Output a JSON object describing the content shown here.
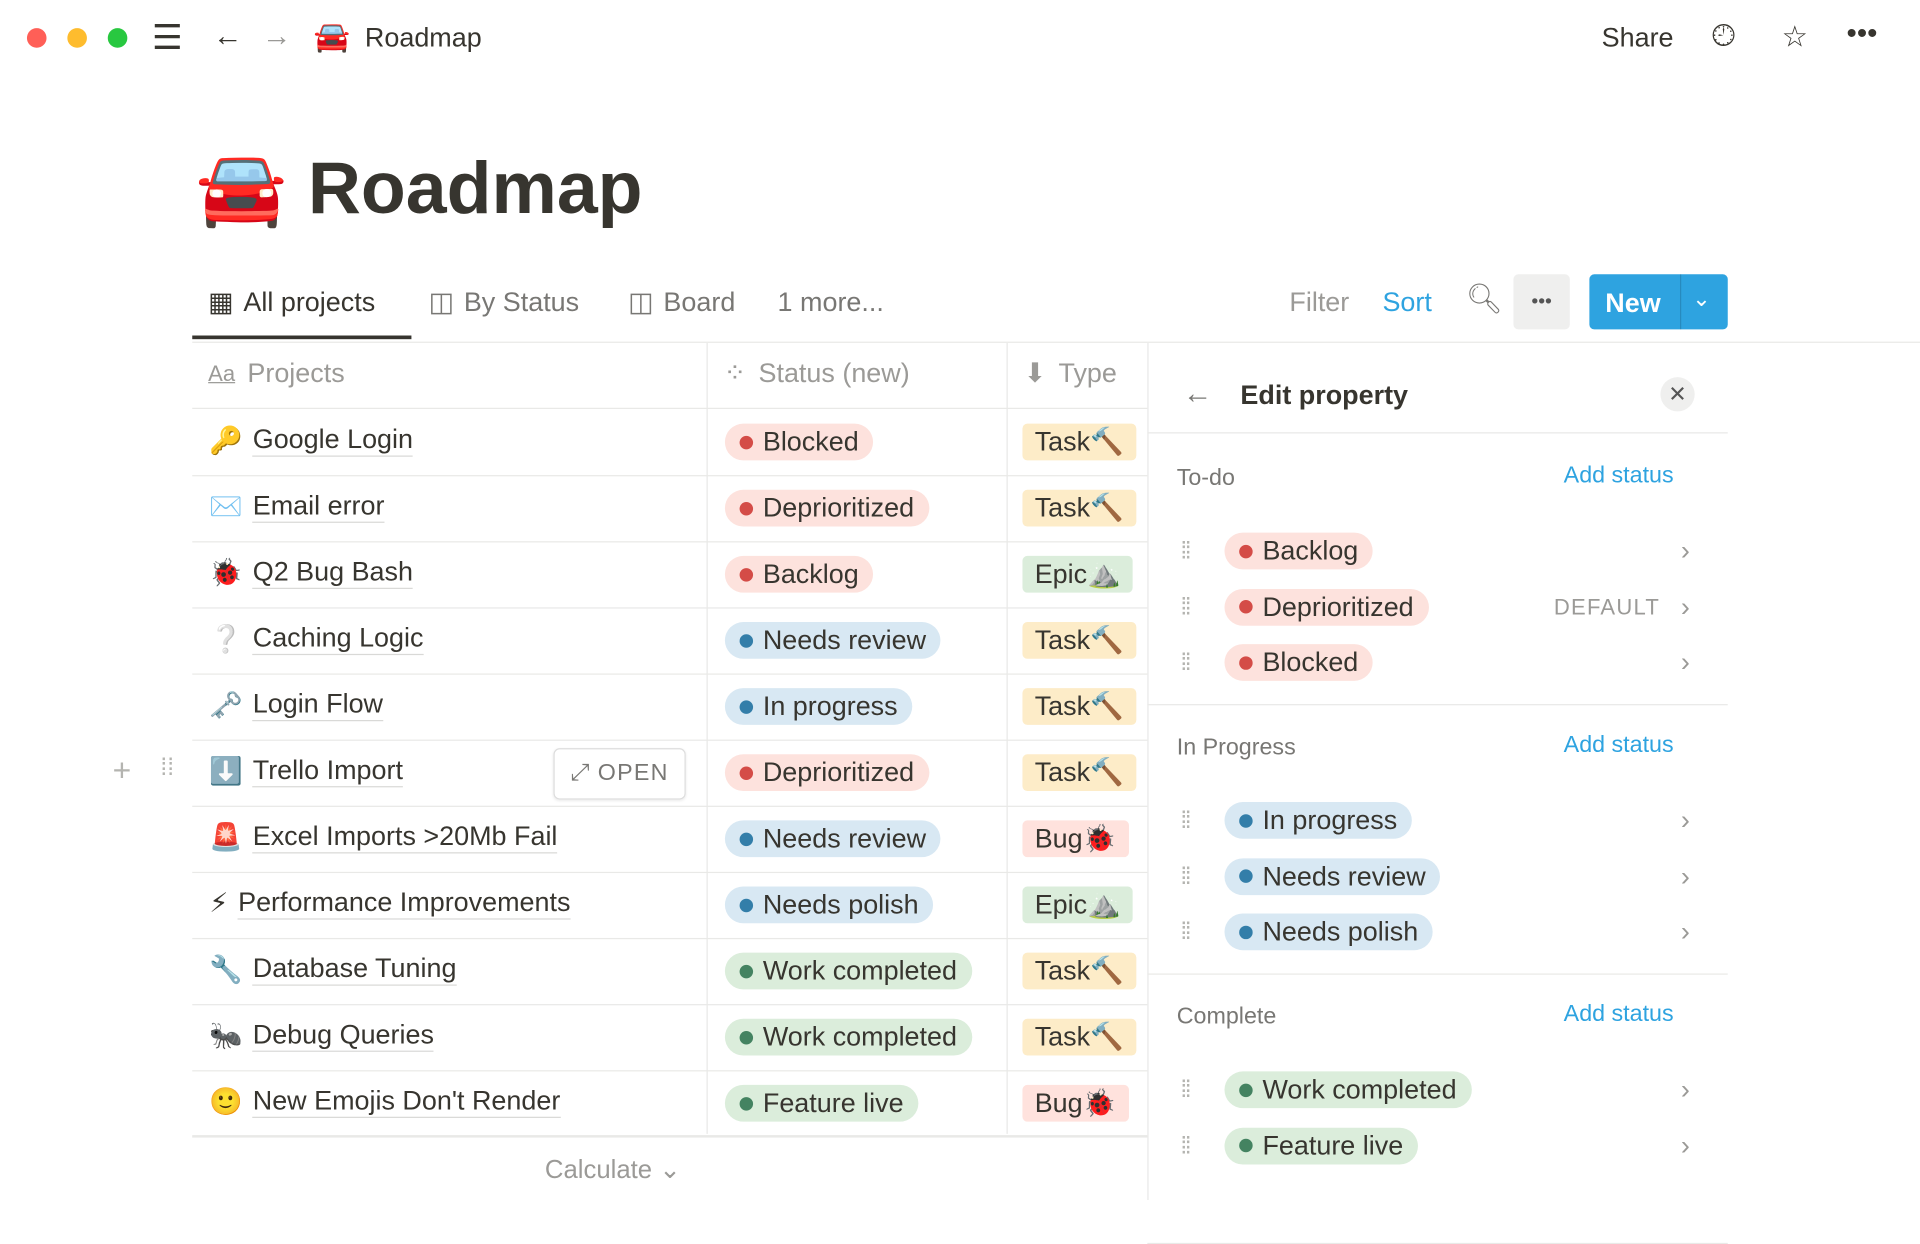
{
  "window": {
    "title": "Roadmap",
    "title_icon": "🚘",
    "share": "Share"
  },
  "page": {
    "title": "Roadmap",
    "icon": "🚘"
  },
  "tabs": [
    {
      "label": "All projects",
      "icon": "table-icon"
    },
    {
      "label": "By Status",
      "icon": "board-icon"
    },
    {
      "label": "Board",
      "icon": "board-icon"
    },
    {
      "label": "1 more..."
    }
  ],
  "toolbar": {
    "filter": "Filter",
    "sort": "Sort",
    "new": "New",
    "more": "•••"
  },
  "columns": {
    "projects": "Projects",
    "projects_icon": "Aa",
    "status": "Status (new)",
    "type": "Type"
  },
  "colors": {
    "red_bg": "#fde2dd",
    "red_dot": "#d44c47",
    "blue_bg": "#d8e8f3",
    "blue_dot": "#337ea9",
    "green_bg": "#dbeddb",
    "green_dot": "#448361",
    "task_bg": "#fdecc8",
    "epic_bg": "#dbeddb",
    "bug_bg": "#ffe2dd",
    "accent": "#2ea3e0"
  },
  "rows": [
    {
      "emoji": "🔑",
      "name": "Google Login",
      "status": "Blocked",
      "color": "red",
      "type": "Task🔨"
    },
    {
      "emoji": "✉️",
      "name": "Email error",
      "status": "Deprioritized",
      "color": "red",
      "type": "Task🔨"
    },
    {
      "emoji": "🐞",
      "name": "Q2 Bug Bash",
      "status": "Backlog",
      "color": "red",
      "type": "Epic⛰️"
    },
    {
      "emoji": "❔",
      "name": "Caching Logic",
      "status": "Needs review",
      "color": "blue",
      "type": "Task🔨"
    },
    {
      "emoji": "🗝️",
      "name": "Login Flow",
      "status": "In progress",
      "color": "blue",
      "type": "Task🔨"
    },
    {
      "emoji": "⬇️",
      "name": "Trello Import",
      "status": "Deprioritized",
      "color": "red",
      "type": "Task🔨",
      "open": "OPEN"
    },
    {
      "emoji": "🚨",
      "name": "Excel Imports >20Mb Fail",
      "status": "Needs review",
      "color": "blue",
      "type": "Bug🐞"
    },
    {
      "emoji": "⚡",
      "name": "Performance Improvements",
      "status": "Needs polish",
      "color": "blue",
      "type": "Epic⛰️"
    },
    {
      "emoji": "🔧",
      "name": "Database Tuning",
      "status": "Work completed",
      "color": "green",
      "type": "Task🔨"
    },
    {
      "emoji": "🐜",
      "name": "Debug Queries",
      "status": "Work completed",
      "color": "green",
      "type": "Task🔨"
    },
    {
      "emoji": "🙂",
      "name": "New Emojis Don't Render",
      "status": "Feature live",
      "color": "green",
      "type": "Bug🐞"
    }
  ],
  "calculate": "Calculate",
  "panel": {
    "title": "Edit property",
    "add_status": "Add status",
    "default": "DEFAULT",
    "groups": [
      {
        "label": "To-do",
        "color": "red",
        "options": [
          "Backlog",
          "Deprioritized",
          "Blocked"
        ]
      },
      {
        "label": "In Progress",
        "color": "blue",
        "options": [
          "In progress",
          "Needs review",
          "Needs polish"
        ]
      },
      {
        "label": "Complete",
        "color": "green",
        "options": [
          "Work completed",
          "Feature live"
        ]
      }
    ]
  }
}
